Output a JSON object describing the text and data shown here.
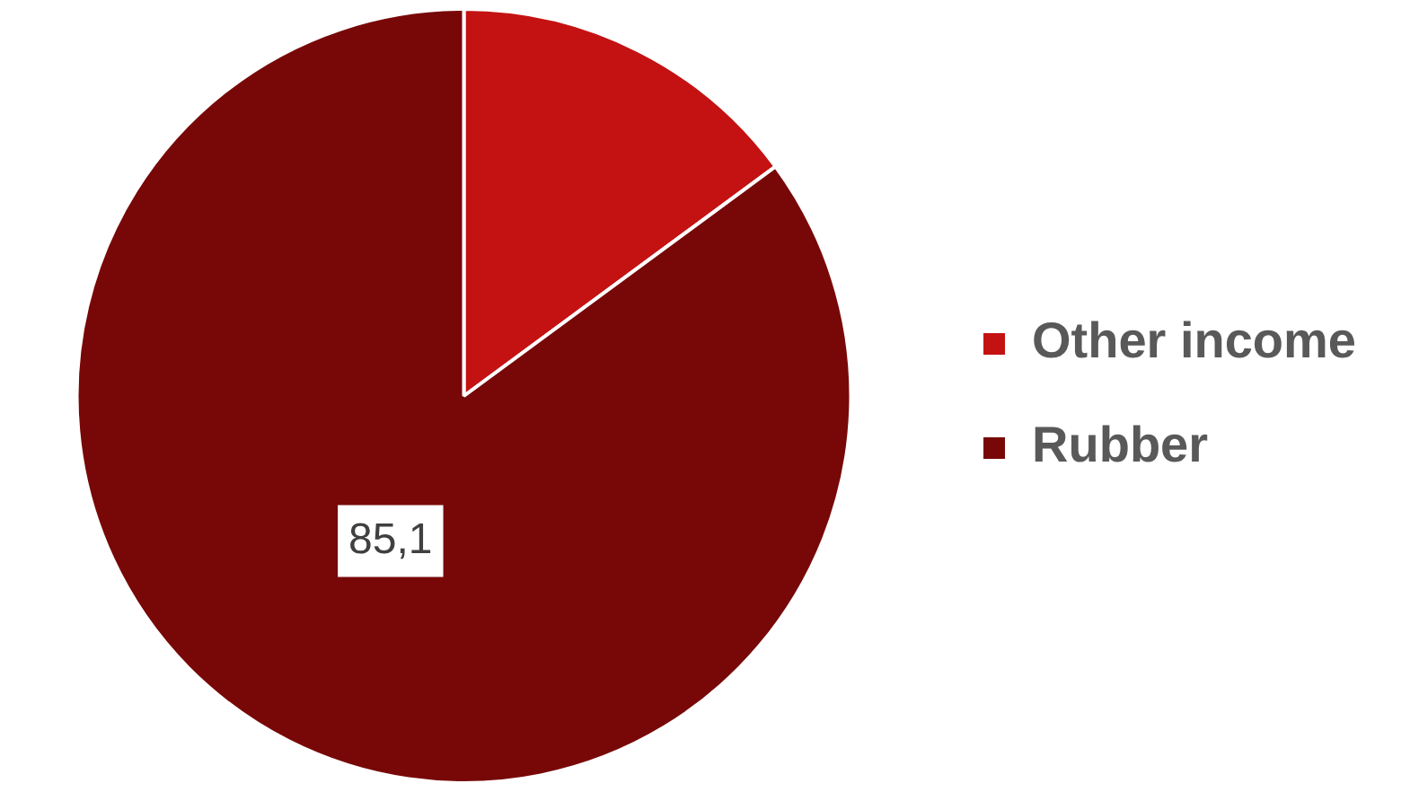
{
  "chart_data": {
    "type": "pie",
    "categories": [
      "Other income",
      "Rubber"
    ],
    "values": [
      14.9,
      85.1
    ],
    "colors": [
      "#c41212",
      "#780808"
    ],
    "value_labels": [
      null,
      "85,1"
    ],
    "legend": "right"
  }
}
